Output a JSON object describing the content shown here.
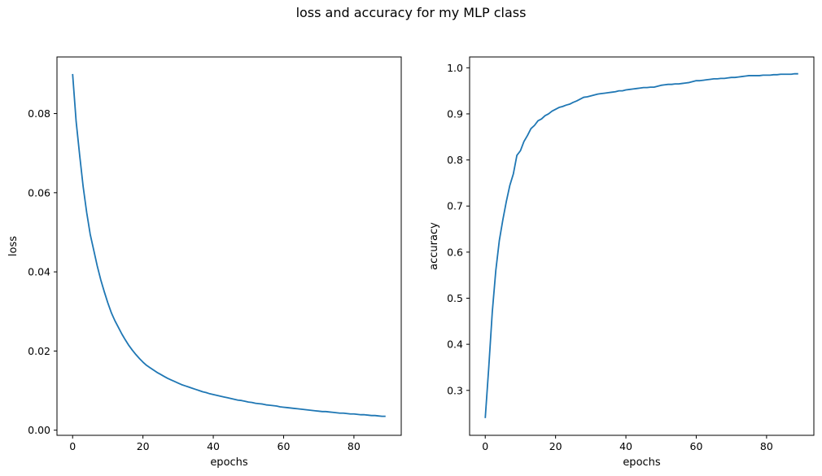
{
  "figure": {
    "title": "loss and accuracy for my MLP class"
  },
  "chart_data": [
    {
      "type": "line",
      "xlabel": "epochs",
      "ylabel": "loss",
      "xlim": [
        -4.45,
        93.45
      ],
      "ylim": [
        -0.0013,
        0.0943
      ],
      "xticks": [
        0,
        20,
        40,
        60,
        80
      ],
      "xtick_labels": [
        "0",
        "20",
        "40",
        "60",
        "80"
      ],
      "yticks": [
        0.0,
        0.02,
        0.04,
        0.06,
        0.08
      ],
      "ytick_labels": [
        "0.00",
        "0.02",
        "0.04",
        "0.06",
        "0.08"
      ],
      "grid": false,
      "color": "#1f77b4",
      "series": [
        {
          "x": [
            0,
            1,
            2,
            3,
            4,
            5,
            6,
            7,
            8,
            9,
            10,
            11,
            12,
            13,
            14,
            15,
            16,
            17,
            18,
            19,
            20,
            21,
            22,
            23,
            24,
            25,
            26,
            27,
            28,
            29,
            30,
            31,
            32,
            33,
            34,
            35,
            36,
            37,
            38,
            39,
            40,
            41,
            42,
            43,
            44,
            45,
            46,
            47,
            48,
            49,
            50,
            51,
            52,
            53,
            54,
            55,
            56,
            57,
            58,
            59,
            60,
            61,
            62,
            63,
            64,
            65,
            66,
            67,
            68,
            69,
            70,
            71,
            72,
            73,
            74,
            75,
            76,
            77,
            78,
            79,
            80,
            81,
            82,
            83,
            84,
            85,
            86,
            87,
            88,
            89
          ],
          "y": [
            0.09,
            0.078,
            0.0695,
            0.0615,
            0.055,
            0.0495,
            0.0455,
            0.0415,
            0.038,
            0.035,
            0.0322,
            0.0297,
            0.0277,
            0.026,
            0.0243,
            0.0228,
            0.0214,
            0.0202,
            0.0191,
            0.0181,
            0.0172,
            0.0164,
            0.0158,
            0.0152,
            0.0146,
            0.0141,
            0.0136,
            0.0131,
            0.0127,
            0.0123,
            0.0119,
            0.0115,
            0.0112,
            0.0109,
            0.0106,
            0.0103,
            0.01,
            0.0097,
            0.0095,
            0.0092,
            0.009,
            0.0088,
            0.0086,
            0.0084,
            0.0082,
            0.008,
            0.0078,
            0.0076,
            0.0075,
            0.0073,
            0.0071,
            0.007,
            0.0068,
            0.0067,
            0.0066,
            0.0064,
            0.0063,
            0.0062,
            0.0061,
            0.0059,
            0.0058,
            0.0057,
            0.0056,
            0.0055,
            0.0054,
            0.0053,
            0.0052,
            0.0051,
            0.005,
            0.0049,
            0.0048,
            0.0047,
            0.0047,
            0.0046,
            0.0045,
            0.0044,
            0.0043,
            0.0043,
            0.0042,
            0.0041,
            0.0041,
            0.004,
            0.0039,
            0.0039,
            0.0038,
            0.0037,
            0.0037,
            0.0036,
            0.0035,
            0.0035
          ]
        }
      ]
    },
    {
      "type": "line",
      "xlabel": "epochs",
      "ylabel": "accuracy",
      "xlim": [
        -4.45,
        93.45
      ],
      "ylim": [
        0.2025,
        1.0235
      ],
      "xticks": [
        0,
        20,
        40,
        60,
        80
      ],
      "xtick_labels": [
        "0",
        "20",
        "40",
        "60",
        "80"
      ],
      "yticks": [
        0.3,
        0.4,
        0.5,
        0.6,
        0.7,
        0.8,
        0.9,
        1.0
      ],
      "ytick_labels": [
        "0.3",
        "0.4",
        "0.5",
        "0.6",
        "0.7",
        "0.8",
        "0.9",
        "1.0"
      ],
      "grid": false,
      "color": "#1f77b4",
      "series": [
        {
          "x": [
            0,
            1,
            2,
            3,
            4,
            5,
            6,
            7,
            8,
            9,
            10,
            11,
            12,
            13,
            14,
            15,
            16,
            17,
            18,
            19,
            20,
            21,
            22,
            23,
            24,
            25,
            26,
            27,
            28,
            29,
            30,
            31,
            32,
            33,
            34,
            35,
            36,
            37,
            38,
            39,
            40,
            41,
            42,
            43,
            44,
            45,
            46,
            47,
            48,
            49,
            50,
            51,
            52,
            53,
            54,
            55,
            56,
            57,
            58,
            59,
            60,
            61,
            62,
            63,
            64,
            65,
            66,
            67,
            68,
            69,
            70,
            71,
            72,
            73,
            74,
            75,
            76,
            77,
            78,
            79,
            80,
            81,
            82,
            83,
            84,
            85,
            86,
            87,
            88,
            89
          ],
          "y": [
            0.24,
            0.35,
            0.47,
            0.56,
            0.625,
            0.67,
            0.71,
            0.745,
            0.77,
            0.81,
            0.82,
            0.84,
            0.853,
            0.868,
            0.875,
            0.885,
            0.889,
            0.896,
            0.9,
            0.906,
            0.91,
            0.914,
            0.916,
            0.919,
            0.921,
            0.925,
            0.928,
            0.932,
            0.936,
            0.937,
            0.939,
            0.941,
            0.943,
            0.944,
            0.945,
            0.946,
            0.947,
            0.948,
            0.95,
            0.95,
            0.952,
            0.953,
            0.954,
            0.955,
            0.956,
            0.957,
            0.957,
            0.958,
            0.958,
            0.96,
            0.962,
            0.963,
            0.964,
            0.964,
            0.965,
            0.965,
            0.966,
            0.967,
            0.968,
            0.97,
            0.972,
            0.972,
            0.973,
            0.974,
            0.975,
            0.976,
            0.976,
            0.977,
            0.977,
            0.978,
            0.979,
            0.979,
            0.98,
            0.981,
            0.982,
            0.983,
            0.983,
            0.983,
            0.983,
            0.984,
            0.984,
            0.984,
            0.985,
            0.985,
            0.986,
            0.986,
            0.986,
            0.986,
            0.987,
            0.987
          ]
        }
      ]
    }
  ]
}
